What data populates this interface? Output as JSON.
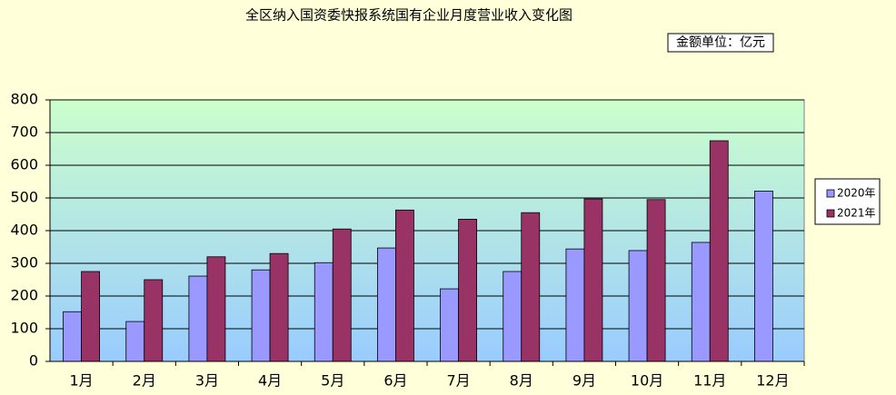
{
  "chart_data": {
    "type": "bar",
    "title": "全区纳入国资委快报系统国有企业月度营业收入变化图",
    "annotation": "金额单位：亿元",
    "categories": [
      "1月",
      "2月",
      "3月",
      "4月",
      "5月",
      "6月",
      "7月",
      "8月",
      "9月",
      "10月",
      "11月",
      "12月"
    ],
    "series": [
      {
        "name": "2020年",
        "color": "#9999ff",
        "values": [
          152,
          122,
          261,
          280,
          302,
          347,
          222,
          275,
          344,
          339,
          364,
          521
        ]
      },
      {
        "name": "2021年",
        "color": "#993366",
        "values": [
          275,
          250,
          320,
          330,
          405,
          463,
          435,
          455,
          497,
          495,
          675,
          null
        ]
      }
    ],
    "ylim": [
      0,
      800
    ],
    "yticks": [
      0,
      100,
      200,
      300,
      400,
      500,
      600,
      700,
      800
    ],
    "grid": true,
    "legend": "right"
  }
}
